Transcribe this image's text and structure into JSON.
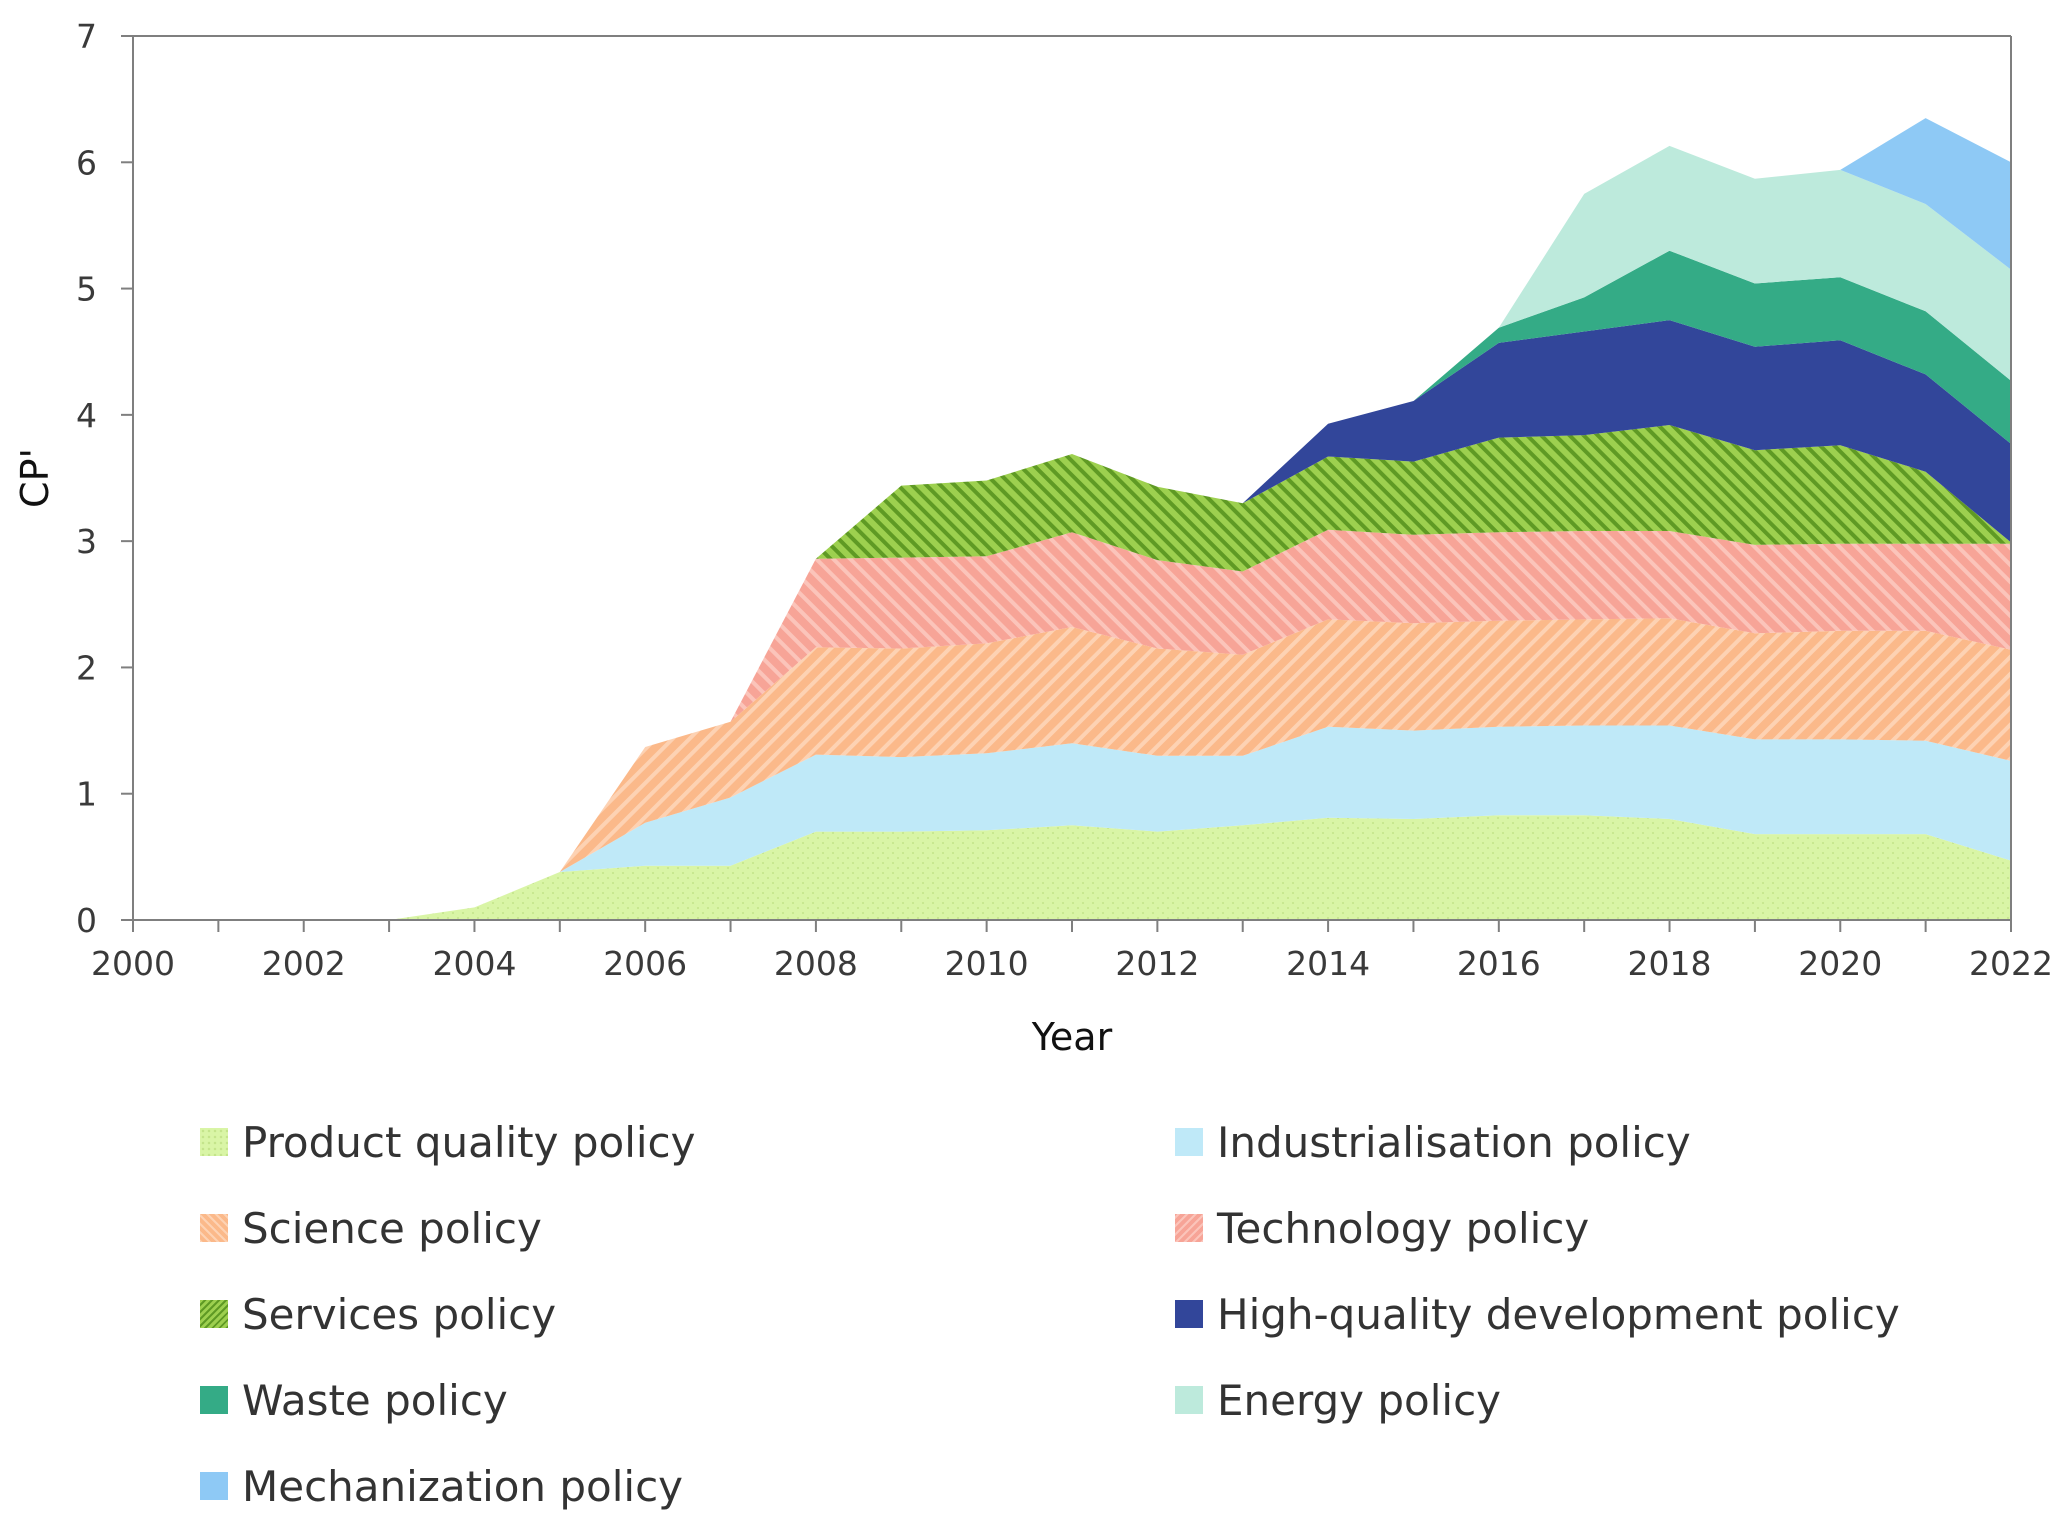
{
  "chart_data": {
    "type": "area",
    "stacked": true,
    "title": "",
    "xlabel": "Year",
    "ylabel": "CP'",
    "xlim": [
      2000,
      2022
    ],
    "ylim": [
      0,
      7
    ],
    "x_ticks": [
      2000,
      2002,
      2004,
      2006,
      2008,
      2010,
      2012,
      2014,
      2016,
      2018,
      2020,
      2022
    ],
    "y_ticks": [
      0,
      1,
      2,
      3,
      4,
      5,
      6,
      7
    ],
    "x": [
      2000,
      2001,
      2002,
      2003,
      2004,
      2005,
      2006,
      2007,
      2008,
      2009,
      2010,
      2011,
      2012,
      2013,
      2014,
      2015,
      2016,
      2017,
      2018,
      2019,
      2020,
      2021,
      2022
    ],
    "series": [
      {
        "name": "Product quality policy",
        "color": "#d9f5a6",
        "pattern": "dots",
        "values": [
          0,
          0,
          0,
          0,
          0.1,
          0.38,
          0.43,
          0.43,
          0.7,
          0.7,
          0.71,
          0.75,
          0.7,
          0.75,
          0.81,
          0.8,
          0.83,
          0.83,
          0.8,
          0.68,
          0.68,
          0.68,
          0.47
        ]
      },
      {
        "name": "Industrialisation policy",
        "color": "#bfe9f8",
        "pattern": "none",
        "values": [
          0,
          0,
          0,
          0,
          0,
          0,
          0.34,
          0.54,
          0.61,
          0.59,
          0.61,
          0.65,
          0.6,
          0.55,
          0.72,
          0.7,
          0.7,
          0.71,
          0.74,
          0.75,
          0.75,
          0.74,
          0.79
        ]
      },
      {
        "name": "Science policy",
        "color": "#fbb98a",
        "pattern": "diag",
        "values": [
          0,
          0,
          0,
          0,
          0,
          0,
          0.6,
          0.6,
          0.85,
          0.86,
          0.87,
          0.92,
          0.85,
          0.8,
          0.85,
          0.85,
          0.84,
          0.84,
          0.85,
          0.84,
          0.86,
          0.87,
          0.88
        ]
      },
      {
        "name": "Technology policy",
        "color": "#f7a497",
        "pattern": "diag",
        "values": [
          0,
          0,
          0,
          0,
          0,
          0,
          0,
          0,
          0.7,
          0.72,
          0.69,
          0.75,
          0.7,
          0.66,
          0.71,
          0.7,
          0.7,
          0.7,
          0.69,
          0.7,
          0.69,
          0.69,
          0.84
        ]
      },
      {
        "name": "Services policy",
        "color": "#9dd04f",
        "pattern": "diag-dark",
        "values": [
          0,
          0,
          0,
          0,
          0,
          0,
          0,
          0,
          0,
          0.57,
          0.6,
          0.62,
          0.58,
          0.54,
          0.58,
          0.58,
          0.75,
          0.76,
          0.84,
          0.75,
          0.78,
          0.57,
          0.01
        ]
      },
      {
        "name": "High-quality development policy",
        "color": "#32469a",
        "pattern": "none",
        "values": [
          0,
          0,
          0,
          0,
          0,
          0,
          0,
          0,
          0,
          0,
          0,
          0,
          0,
          0,
          0.26,
          0.48,
          0.75,
          0.82,
          0.83,
          0.82,
          0.83,
          0.77,
          0.78
        ]
      },
      {
        "name": "Waste policy",
        "color": "#34ab86",
        "pattern": "none",
        "values": [
          0,
          0,
          0,
          0,
          0,
          0,
          0,
          0,
          0,
          0,
          0,
          0,
          0,
          0,
          0,
          0,
          0.12,
          0.27,
          0.55,
          0.5,
          0.5,
          0.5,
          0.5
        ]
      },
      {
        "name": "Energy policy",
        "color": "#bdeadc",
        "pattern": "none",
        "values": [
          0,
          0,
          0,
          0,
          0,
          0,
          0,
          0,
          0,
          0,
          0,
          0,
          0,
          0,
          0,
          0,
          0,
          0.82,
          0.83,
          0.83,
          0.85,
          0.85,
          0.88
        ]
      },
      {
        "name": "Mechanization policy",
        "color": "#8ec9f5",
        "pattern": "none",
        "values": [
          0,
          0,
          0,
          0,
          0,
          0,
          0,
          0,
          0,
          0,
          0,
          0,
          0,
          0,
          0,
          0,
          0,
          0,
          0,
          0,
          0,
          0.68,
          0.85
        ]
      }
    ],
    "legend_position": "bottom"
  }
}
